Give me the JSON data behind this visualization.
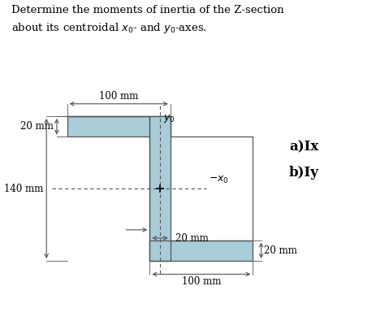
{
  "title_line1": "Determine the moments of inertia of the Z-section",
  "title_line2": "about its centroidal $x_0$- and $y_0$-axes.",
  "shape_color": "#a8cdd8",
  "shape_edge_color": "#555555",
  "background_color": "#ffffff",
  "answer_a": "a)Ix",
  "answer_b": "b)Iy",
  "fig_width": 4.64,
  "fig_height": 4.0,
  "dpi": 100,
  "annot_fontsize": 8.5,
  "title_fontsize": 9.5
}
